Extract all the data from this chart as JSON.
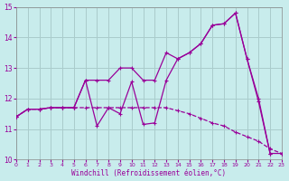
{
  "background_color": "#c8ecec",
  "line_color": "#990099",
  "grid_color": "#aacccc",
  "xlabel": "Windchill (Refroidissement éolien,°C)",
  "xlim": [
    0,
    23
  ],
  "ylim": [
    10,
    15
  ],
  "yticks": [
    10,
    11,
    12,
    13,
    14,
    15
  ],
  "xticks": [
    0,
    1,
    2,
    3,
    4,
    5,
    6,
    7,
    8,
    9,
    10,
    11,
    12,
    13,
    14,
    15,
    16,
    17,
    18,
    19,
    20,
    21,
    22,
    23
  ],
  "line1_x": [
    0,
    1,
    2,
    3,
    4,
    5,
    6,
    7,
    8,
    9,
    10,
    11,
    12,
    13,
    14,
    15,
    16,
    17,
    18,
    19,
    20,
    21,
    22
  ],
  "line1_y": [
    11.4,
    11.65,
    11.65,
    11.7,
    11.7,
    11.7,
    12.6,
    12.6,
    12.6,
    13.0,
    13.0,
    12.6,
    12.6,
    13.5,
    13.3,
    13.5,
    13.8,
    14.4,
    14.45,
    14.8,
    13.3,
    12.0,
    10.2
  ],
  "line2_x": [
    0,
    1,
    2,
    3,
    4,
    5,
    6,
    7,
    8,
    9,
    10,
    11,
    12,
    13,
    14,
    15,
    16,
    17,
    18,
    19,
    20,
    21,
    22,
    23
  ],
  "line2_y": [
    11.4,
    11.65,
    11.65,
    11.7,
    11.7,
    11.7,
    12.6,
    11.1,
    11.7,
    11.5,
    12.55,
    11.15,
    11.2,
    12.6,
    13.3,
    13.5,
    13.8,
    14.4,
    14.45,
    14.8,
    13.3,
    11.9,
    10.2,
    10.2
  ],
  "line3_x": [
    0,
    1,
    2,
    3,
    4,
    5,
    6,
    7,
    8,
    9,
    10,
    11,
    12,
    13,
    14,
    15,
    16,
    17,
    18,
    19,
    20,
    21,
    22,
    23
  ],
  "line3_y": [
    11.4,
    11.65,
    11.65,
    11.7,
    11.7,
    11.7,
    11.7,
    11.7,
    11.7,
    11.7,
    11.7,
    11.7,
    11.7,
    11.7,
    11.6,
    11.5,
    11.35,
    11.2,
    11.1,
    10.9,
    10.75,
    10.6,
    10.35,
    10.2
  ]
}
